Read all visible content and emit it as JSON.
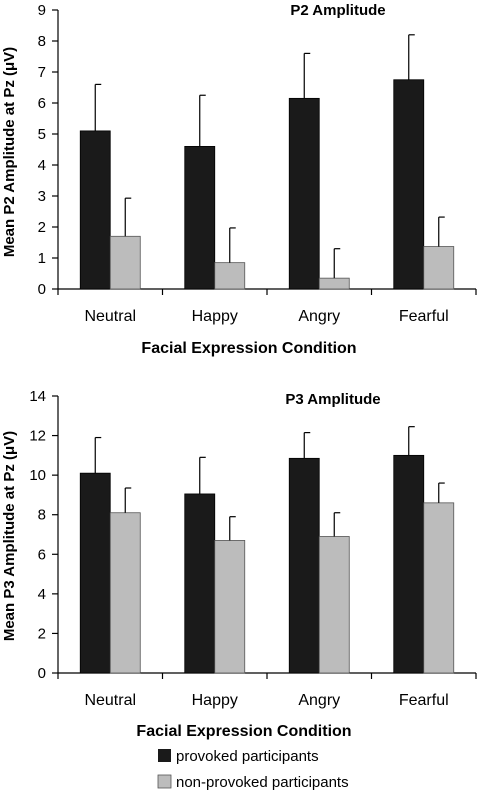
{
  "chart_data": [
    {
      "type": "bar",
      "title": "P2 Amplitude",
      "xlabel": "Facial Expression Condition",
      "ylabel": "Mean P2 Amplitude at Pz (μV)",
      "categories": [
        "Neutral",
        "Happy",
        "Angry",
        "Fearful"
      ],
      "ylim": [
        0,
        9
      ],
      "yticks": [
        "0",
        "1",
        "2",
        "3",
        "4",
        "5",
        "6",
        "7",
        "8",
        "9"
      ],
      "series": [
        {
          "name": "provoked participants",
          "color": "#1a1a1a",
          "values": [
            5.1,
            4.6,
            6.15,
            6.75
          ],
          "errors": [
            1.5,
            1.65,
            1.45,
            1.45
          ]
        },
        {
          "name": "non-provoked participants",
          "color": "#bcbcbc",
          "values": [
            1.7,
            0.85,
            0.35,
            1.37
          ],
          "errors": [
            1.23,
            1.12,
            0.95,
            0.95
          ]
        }
      ],
      "grid": false
    },
    {
      "type": "bar",
      "title": "P3 Amplitude",
      "xlabel": "Facial Expression Condition",
      "ylabel": "Mean P3 Amplitude at Pz (μV)",
      "categories": [
        "Neutral",
        "Happy",
        "Angry",
        "Fearful"
      ],
      "ylim": [
        0,
        14
      ],
      "yticks": [
        "0",
        "2",
        "4",
        "6",
        "8",
        "10",
        "12",
        "14"
      ],
      "series": [
        {
          "name": "provoked participants",
          "color": "#1a1a1a",
          "values": [
            10.1,
            9.05,
            10.85,
            11.0
          ],
          "errors": [
            1.8,
            1.85,
            1.3,
            1.45
          ]
        },
        {
          "name": "non-provoked participants",
          "color": "#bcbcbc",
          "values": [
            8.1,
            6.7,
            6.9,
            8.6
          ],
          "errors": [
            1.25,
            1.2,
            1.2,
            1.0
          ]
        }
      ],
      "grid": false
    }
  ],
  "legend": {
    "placement": "bottom-left",
    "items": [
      {
        "label": "provoked participants",
        "color": "#1a1a1a"
      },
      {
        "label": "non-provoked participants",
        "color": "#bcbcbc"
      }
    ]
  }
}
